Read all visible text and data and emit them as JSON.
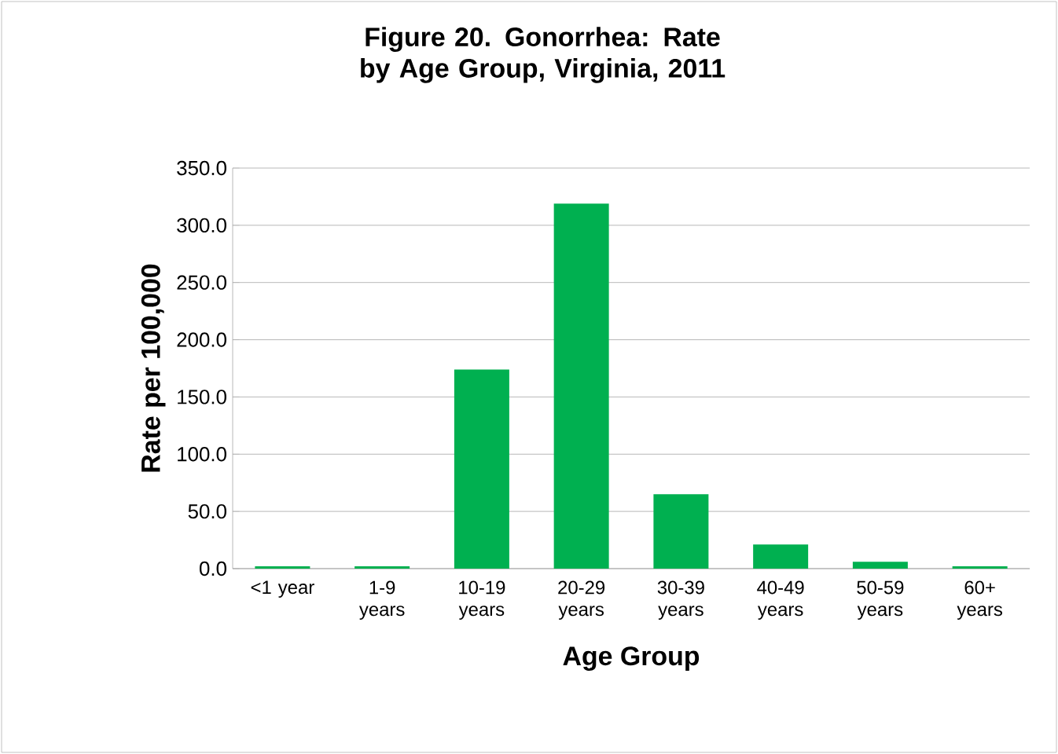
{
  "chart_data": {
    "type": "bar",
    "title": "Figure 20. Gonorrhea: Rate by Age Group, Virginia, 2011",
    "xlabel": "Age Group",
    "ylabel": "Rate per 100,000",
    "categories": [
      "<1 year",
      "1-9 years",
      "10-19 years",
      "20-29 years",
      "30-39 years",
      "40-49 years",
      "50-59 years",
      "60+ years"
    ],
    "values": [
      2,
      2,
      174,
      319,
      65,
      21,
      6,
      2
    ],
    "color": "#00b050",
    "ylim": [
      0,
      350
    ],
    "yticks": [
      {
        "value": 0,
        "label": "0.0"
      },
      {
        "value": 50,
        "label": "50.0"
      },
      {
        "value": 100,
        "label": "100.0"
      },
      {
        "value": 150,
        "label": "150.0"
      },
      {
        "value": 200,
        "label": "200.0"
      },
      {
        "value": 250,
        "label": "250.0"
      },
      {
        "value": 300,
        "label": "300.0"
      },
      {
        "value": 350,
        "label": "350.0"
      }
    ],
    "grid": "y"
  }
}
